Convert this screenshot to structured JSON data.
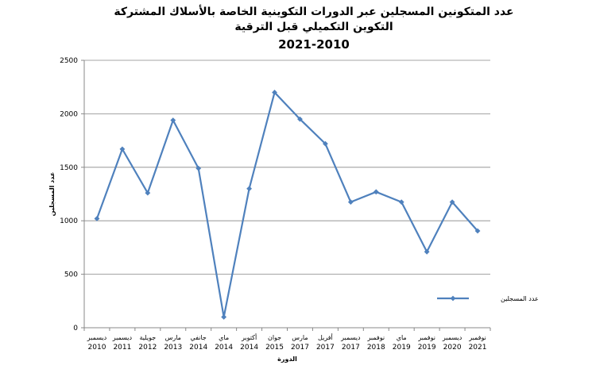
{
  "title": {
    "line1": "عدد المتكونين المسجلين عبر الدورات التكوينية الخاصة بالأسلاك المشتركة",
    "line2": "التكوين التكميلي قبل الترقية",
    "years": "2021-2010"
  },
  "colors": {
    "series": "#4F81BD",
    "axis": "#888888",
    "grid": "#868686"
  },
  "chart_data": {
    "type": "line",
    "title": "عدد المتكونين المسجلين عبر الدورات التكوينية الخاصة بالأسلاك المشتركة التكوين التكميلي قبل الترقية 2021-2010",
    "xlabel": "الدورة",
    "ylabel": "عدد المسجلين",
    "ylim": [
      0,
      2500
    ],
    "yticks": [
      0,
      500,
      1000,
      1500,
      2000,
      2500
    ],
    "grid": true,
    "legend": "right",
    "categories": [
      {
        "month": "ديسمبر",
        "year": "2010"
      },
      {
        "month": "ديسمبر",
        "year": "2011"
      },
      {
        "month": "جويلية",
        "year": "2012"
      },
      {
        "month": "مارس",
        "year": "2013"
      },
      {
        "month": "جانفي",
        "year": "2014"
      },
      {
        "month": "ماي",
        "year": "2014"
      },
      {
        "month": "أكتوبر",
        "year": "2014"
      },
      {
        "month": "جوان",
        "year": "2015"
      },
      {
        "month": "مارس",
        "year": "2017"
      },
      {
        "month": "أفريل",
        "year": "2017"
      },
      {
        "month": "ديسمبر",
        "year": "2017"
      },
      {
        "month": "نوفمبر",
        "year": "2018"
      },
      {
        "month": "ماي",
        "year": "2019"
      },
      {
        "month": "نوفمبر",
        "year": "2019"
      },
      {
        "month": "ديسمبر",
        "year": "2020"
      },
      {
        "month": "نوفمبر",
        "year": "2021"
      }
    ],
    "series": [
      {
        "name": "عدد المسجلين",
        "values": [
          1020,
          1670,
          1260,
          1940,
          1490,
          100,
          1300,
          2200,
          1950,
          1720,
          1175,
          1270,
          1175,
          710,
          1175,
          905
        ]
      }
    ]
  }
}
